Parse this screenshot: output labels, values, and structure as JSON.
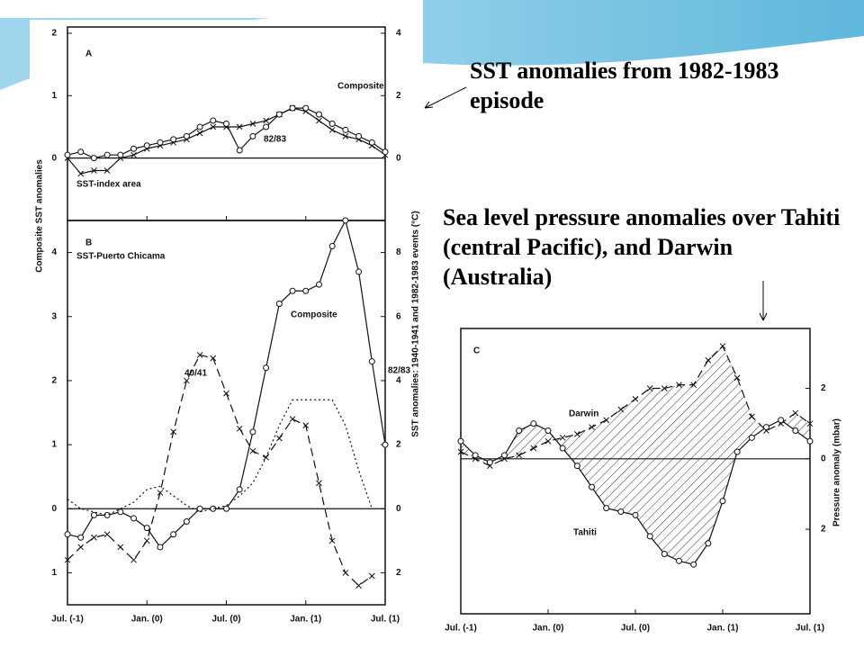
{
  "slide": {
    "caption_1": "SST  anomalies from 1982-1983 episode",
    "caption_2": "Sea level pressure anomalies over Tahiti (central Pacific), and Darwin (Australia)"
  },
  "chart_data": [
    {
      "type": "line",
      "panel_label": "A",
      "title": "SST-index area",
      "ylabel": "Composite SST anomalies",
      "y2label": "SST anomalies: 1940-1941 and 1982-1983 events (°C)",
      "categories": [
        "Jul. (-1)",
        null,
        null,
        null,
        null,
        null,
        "Jan. (0)",
        null,
        null,
        null,
        null,
        null,
        "Jul. (0)",
        null,
        null,
        null,
        null,
        null,
        "Jan. (1)",
        null,
        null,
        null,
        null,
        null,
        "Jul. (1)"
      ],
      "ylim": [
        -1,
        2.1
      ],
      "yticks": [
        0,
        1,
        2
      ],
      "y2lim": [
        -2,
        4.2
      ],
      "y2ticks": [
        0,
        2,
        4
      ],
      "series": [
        {
          "name": "Composite",
          "marker": "x",
          "line_style": "solid",
          "axis": "y",
          "values": [
            0,
            -0.25,
            -0.2,
            -0.2,
            0,
            0.05,
            0.15,
            0.2,
            0.25,
            0.3,
            0.4,
            0.5,
            0.5,
            0.5,
            0.55,
            0.6,
            0.7,
            0.8,
            0.75,
            0.6,
            0.45,
            0.35,
            0.3,
            0.2,
            0.05
          ]
        },
        {
          "name": "82/83",
          "marker": "o",
          "line_style": "solid",
          "axis": "y2",
          "values": [
            0.1,
            0.2,
            0,
            0.1,
            0.1,
            0.3,
            0.4,
            0.5,
            0.6,
            0.7,
            1.0,
            1.2,
            1.1,
            0.25,
            0.7,
            1.0,
            1.4,
            1.6,
            1.6,
            1.4,
            1.1,
            0.9,
            0.7,
            0.5,
            0.2
          ]
        }
      ]
    },
    {
      "type": "line",
      "panel_label": "B",
      "title": "SST-Puerto Chicama",
      "categories": [
        "Jul. (-1)",
        null,
        null,
        null,
        null,
        null,
        "Jan. (0)",
        null,
        null,
        null,
        null,
        null,
        "Jul. (0)",
        null,
        null,
        null,
        null,
        null,
        "Jan. (1)",
        null,
        null,
        null,
        null,
        null,
        "Jul. (1)"
      ],
      "ylim": [
        -1.5,
        4.5
      ],
      "yticks": [
        {
          "value": -1,
          "label": "1"
        },
        0,
        1,
        2,
        3,
        4
      ],
      "y2lim": [
        -3,
        9
      ],
      "y2ticks": [
        {
          "value": -2,
          "label": "2"
        },
        0,
        2,
        4,
        6,
        8
      ],
      "series": [
        {
          "name": "Composite",
          "marker": "x",
          "line_style": "dashed",
          "axis": "y",
          "values": [
            -0.8,
            -0.6,
            -0.45,
            -0.4,
            -0.6,
            -0.8,
            -0.5,
            0.25,
            1.2,
            2.0,
            2.4,
            2.35,
            1.8,
            1.25,
            0.9,
            0.8,
            1.1,
            1.4,
            1.3,
            0.4,
            -0.5,
            -1.0,
            -1.2,
            -1.05,
            null
          ]
        },
        {
          "name": "82/83",
          "marker": "o",
          "line_style": "solid",
          "axis": "y2",
          "values": [
            -0.8,
            -0.9,
            -0.2,
            -0.2,
            -0.1,
            -0.3,
            -0.6,
            -1.2,
            -0.8,
            -0.4,
            0,
            0,
            0,
            0.6,
            2.4,
            4.4,
            6.4,
            6.8,
            6.8,
            7.0,
            8.2,
            9.0,
            7.4,
            4.6,
            2.0
          ]
        },
        {
          "name": "40/41",
          "marker": "none",
          "line_style": "dotted",
          "axis": "y2",
          "values": [
            0.3,
            0,
            -0.1,
            -0.2,
            0,
            0.2,
            0.6,
            0.7,
            0.4,
            0.1,
            -0.1,
            0,
            0.1,
            0.4,
            0.8,
            1.6,
            2.6,
            3.4,
            3.4,
            3.4,
            3.4,
            2.6,
            1.2,
            0,
            null
          ]
        }
      ]
    },
    {
      "type": "line",
      "panel_label": "C",
      "y2label": "Pressure anomaly (mbar)",
      "categories": [
        "Jul. (-1)",
        null,
        null,
        null,
        null,
        null,
        "Jan. (0)",
        null,
        null,
        null,
        null,
        null,
        "Jul. (0)",
        null,
        null,
        null,
        null,
        null,
        "Jan. (1)",
        null,
        null,
        null,
        null,
        null,
        "Jul. (1)"
      ],
      "y2lim": [
        -4.4,
        3.7
      ],
      "y2ticks": [
        {
          "value": -2,
          "label": "2"
        },
        0,
        2
      ],
      "hatch_between": true,
      "series": [
        {
          "name": "Darwin",
          "marker": "x",
          "line_style": "dashed",
          "axis": "y2",
          "values": [
            0.2,
            0,
            -0.2,
            0,
            0.1,
            0.3,
            0.5,
            0.6,
            0.7,
            0.9,
            1.1,
            1.4,
            1.7,
            2.0,
            2.0,
            2.1,
            2.1,
            2.8,
            3.2,
            2.3,
            1.2,
            0.8,
            1.0,
            1.3,
            1.0
          ]
        },
        {
          "name": "Tahiti",
          "marker": "o",
          "line_style": "solid",
          "axis": "y2",
          "values": [
            0.5,
            0.1,
            -0.1,
            0.1,
            0.8,
            1.0,
            0.8,
            0.3,
            -0.2,
            -0.8,
            -1.4,
            -1.5,
            -1.6,
            -2.2,
            -2.7,
            -2.9,
            -3.0,
            -2.4,
            -1.2,
            0.2,
            0.6,
            0.9,
            1.1,
            0.8,
            0.5
          ]
        }
      ]
    }
  ]
}
